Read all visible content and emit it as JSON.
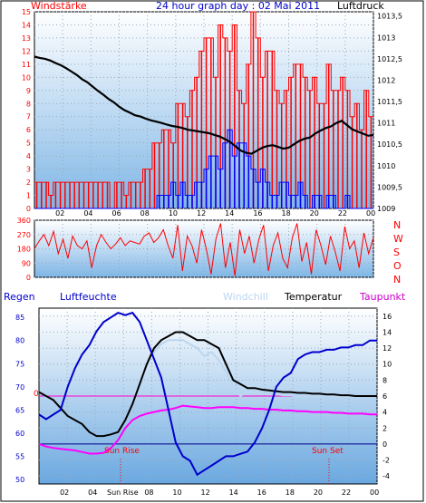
{
  "header": {
    "title": "24 hour graph day : 02 Mai 2011",
    "left_label": "Windstärke",
    "right_label": "Luftdruck"
  },
  "chart_data": [
    {
      "type": "line",
      "name": "wind-pressure",
      "x_ticks": [
        "02",
        "04",
        "06",
        "08",
        "10",
        "12",
        "14",
        "16",
        "18",
        "20",
        "22",
        "00"
      ],
      "y_left_ticks": [
        "0",
        "1",
        "2",
        "3",
        "4",
        "5",
        "6",
        "7",
        "8",
        "9",
        "10",
        "11",
        "12",
        "13",
        "14",
        "15"
      ],
      "y_left_range": [
        0,
        15
      ],
      "y_right_ticks": [
        "1009",
        "1009,5",
        "1010",
        "1010,5",
        "1011",
        "1011,5",
        "1012",
        "1012,5",
        "1013",
        "1013,5"
      ],
      "y_right_range": [
        1009,
        1013.6
      ],
      "series": [
        {
          "color": "#ff0000",
          "role": "wind-gust",
          "axis": "left",
          "values": [
            2,
            2,
            2,
            1,
            2,
            2,
            2,
            2,
            2,
            2,
            2,
            2,
            2,
            2,
            2,
            2,
            0,
            2,
            2,
            1,
            2,
            2,
            2,
            3,
            3,
            5,
            5,
            6,
            6,
            5,
            8,
            8,
            7,
            9,
            10,
            12,
            13,
            13,
            10,
            14,
            13,
            12,
            14,
            9,
            8,
            11,
            15,
            13,
            10,
            12,
            12,
            9,
            8,
            9,
            10,
            11,
            11,
            10,
            9,
            10,
            8,
            8,
            11,
            9,
            9,
            10,
            9,
            7,
            8,
            6,
            9,
            7
          ]
        },
        {
          "color": "#0000ff",
          "role": "wind-mean",
          "axis": "left",
          "values": [
            0,
            0,
            0,
            0,
            0,
            0,
            0,
            0,
            0,
            0,
            0,
            0,
            0,
            0,
            0,
            0,
            0,
            0,
            0,
            0,
            0,
            0,
            0,
            0,
            0,
            0,
            1,
            1,
            1,
            2,
            1,
            2,
            1,
            1,
            2,
            2,
            3,
            4,
            4,
            3,
            5,
            6,
            4,
            5,
            5,
            4,
            3,
            2,
            3,
            2,
            1,
            1,
            2,
            2,
            1,
            1,
            2,
            1,
            0,
            1,
            1,
            0,
            1,
            1,
            0,
            0,
            1,
            0,
            0,
            0,
            0,
            0
          ]
        },
        {
          "color": "#000000",
          "role": "pressure",
          "axis": "right",
          "values": [
            1012.55,
            1012.52,
            1012.5,
            1012.46,
            1012.4,
            1012.35,
            1012.28,
            1012.2,
            1012.12,
            1012.02,
            1011.95,
            1011.85,
            1011.75,
            1011.66,
            1011.56,
            1011.48,
            1011.38,
            1011.3,
            1011.24,
            1011.18,
            1011.15,
            1011.1,
            1011.06,
            1011.03,
            1011,
            1010.96,
            1010.93,
            1010.91,
            1010.88,
            1010.84,
            1010.82,
            1010.8,
            1010.78,
            1010.76,
            1010.72,
            1010.68,
            1010.62,
            1010.55,
            1010.45,
            1010.35,
            1010.3,
            1010.28,
            1010.35,
            1010.42,
            1010.46,
            1010.48,
            1010.44,
            1010.4,
            1010.42,
            1010.5,
            1010.58,
            1010.63,
            1010.66,
            1010.75,
            1010.82,
            1010.88,
            1010.92,
            1011,
            1011.05,
            1010.95,
            1010.85,
            1010.8,
            1010.75,
            1010.7,
            1010.72
          ]
        }
      ]
    },
    {
      "type": "line",
      "name": "wind-direction",
      "y_left_ticks": [
        "0",
        "90",
        "180",
        "270",
        "360"
      ],
      "y_range": [
        0,
        360
      ],
      "right_labels": [
        "N",
        "W",
        "S",
        "O",
        "N"
      ],
      "series": [
        {
          "color": "#ff0000",
          "role": "direction",
          "values": [
            180,
            230,
            270,
            200,
            290,
            150,
            240,
            120,
            260,
            200,
            180,
            230,
            60,
            200,
            270,
            220,
            180,
            210,
            250,
            200,
            230,
            220,
            210,
            260,
            280,
            220,
            250,
            300,
            200,
            120,
            330,
            40,
            260,
            200,
            90,
            300,
            180,
            20,
            240,
            340,
            60,
            220,
            10,
            300,
            150,
            260,
            90,
            240,
            330,
            40,
            200,
            280,
            120,
            60,
            250,
            340,
            100,
            220,
            20,
            300,
            200,
            80,
            260,
            160,
            40,
            320,
            180,
            230,
            60,
            280,
            150,
            250
          ]
        }
      ]
    },
    {
      "type": "line",
      "name": "humidity-temperature",
      "legend": [
        "Regen",
        "Luftfeuchte",
        "Windchill",
        "Temperatur",
        "Taupunkt"
      ],
      "y_left_ticks": [
        "50",
        "55",
        "60",
        "65",
        "70",
        "75",
        "80",
        "85"
      ],
      "y_left_range": [
        49,
        87
      ],
      "y_right_ticks": [
        "-4",
        "-2",
        "0",
        "2",
        "4",
        "6",
        "8",
        "10",
        "12",
        "14",
        "16"
      ],
      "y_right_range": [
        -5,
        17
      ],
      "annotations": [
        "0",
        "Sun Rise",
        "Sun Set",
        "Sun Rise"
      ],
      "x_ticks": [
        "02",
        "04",
        "06",
        "08",
        "10",
        "12",
        "14",
        "16",
        "18",
        "20",
        "22",
        "00"
      ],
      "series": [
        {
          "color": "#0000cc",
          "role": "humidity",
          "axis": "left",
          "values": [
            64,
            63,
            64,
            65,
            70,
            74,
            77,
            79,
            82,
            84,
            85,
            86,
            85.5,
            86,
            84,
            80,
            76,
            72,
            65,
            58,
            55,
            54,
            51,
            52,
            53,
            54,
            55,
            55,
            55.5,
            56,
            58,
            61,
            65,
            70,
            72,
            73,
            76,
            77,
            77.5,
            77.5,
            78,
            78,
            78.5,
            78.5,
            79,
            79,
            80,
            80
          ]
        },
        {
          "color": "#000000",
          "role": "temperature",
          "axis": "right",
          "values": [
            6.5,
            6,
            5.5,
            4.5,
            3.5,
            3,
            2.5,
            1.5,
            1,
            1,
            1.2,
            1.5,
            3,
            5,
            7.5,
            10,
            12,
            13,
            13.5,
            14,
            14,
            13.5,
            13,
            13,
            12.5,
            12,
            10,
            8,
            7.5,
            7,
            7,
            6.8,
            6.7,
            6.6,
            6.5,
            6.5,
            6.4,
            6.4,
            6.3,
            6.3,
            6.2,
            6.2,
            6.1,
            6.1,
            6,
            6,
            6,
            6
          ]
        },
        {
          "color": "#bcd6f0",
          "role": "windchill",
          "axis": "right",
          "values": [
            6.5,
            6,
            5.5,
            4.5,
            3.5,
            3,
            2.5,
            1.5,
            1,
            1,
            1.2,
            1.5,
            3,
            5,
            7.5,
            10,
            11.5,
            12.5,
            13,
            13,
            13,
            12.5,
            12,
            11,
            11.5,
            10.5,
            9,
            7,
            6,
            6.5,
            6.5,
            6.3,
            6.2,
            6.2,
            6.1,
            6.1,
            6,
            6,
            6,
            6,
            6,
            6,
            6,
            6,
            6,
            6,
            6,
            6
          ]
        },
        {
          "color": "#ff00ff",
          "role": "dewpoint",
          "axis": "right",
          "values": [
            0,
            -0.3,
            -0.5,
            -0.6,
            -0.7,
            -0.8,
            -1,
            -1.2,
            -1.2,
            -1.1,
            -0.5,
            0.5,
            2,
            3,
            3.5,
            3.8,
            4,
            4.2,
            4.3,
            4.5,
            4.8,
            4.7,
            4.6,
            4.5,
            4.5,
            4.6,
            4.6,
            4.6,
            4.5,
            4.5,
            4.4,
            4.4,
            4.3,
            4.3,
            4.2,
            4.2,
            4.1,
            4.1,
            4,
            4,
            4,
            3.9,
            3.9,
            3.8,
            3.8,
            3.8,
            3.7,
            3.7
          ]
        }
      ]
    }
  ]
}
